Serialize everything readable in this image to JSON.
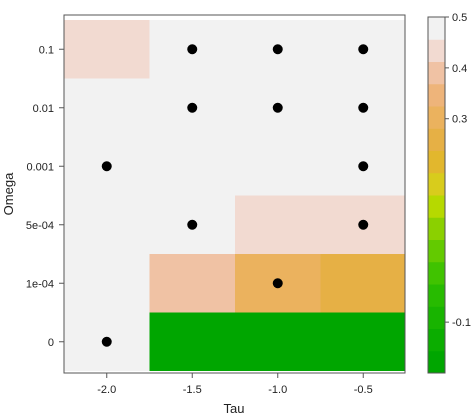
{
  "chart_data": {
    "type": "heatmap",
    "title": "",
    "xlabel": "Tau",
    "ylabel": "Omega",
    "x_categories": [
      "-2.0",
      "-1.5",
      "-1.0",
      "-0.5"
    ],
    "y_categories": [
      "0",
      "1e-04",
      "5e-04",
      "0.001",
      "0.01",
      "0.1"
    ],
    "cells": [
      {
        "tau": "-2.0",
        "omega": "0.1",
        "value": 0.42
      },
      {
        "tau": "-1.5",
        "omega": "0.1",
        "value": 0.46
      },
      {
        "tau": "-1.0",
        "omega": "0.1",
        "value": 0.46
      },
      {
        "tau": "-0.5",
        "omega": "0.1",
        "value": 0.46
      },
      {
        "tau": "-2.0",
        "omega": "0.01",
        "value": 0.46
      },
      {
        "tau": "-1.5",
        "omega": "0.01",
        "value": 0.46
      },
      {
        "tau": "-1.0",
        "omega": "0.01",
        "value": 0.46
      },
      {
        "tau": "-0.5",
        "omega": "0.01",
        "value": 0.5
      },
      {
        "tau": "-2.0",
        "omega": "0.001",
        "value": 0.46
      },
      {
        "tau": "-1.5",
        "omega": "0.001",
        "value": 0.46
      },
      {
        "tau": "-1.0",
        "omega": "0.001",
        "value": 0.46
      },
      {
        "tau": "-0.5",
        "omega": "0.001",
        "value": 0.46
      },
      {
        "tau": "-2.0",
        "omega": "5e-04",
        "value": 0.46
      },
      {
        "tau": "-1.5",
        "omega": "5e-04",
        "value": 0.46
      },
      {
        "tau": "-1.0",
        "omega": "5e-04",
        "value": 0.42
      },
      {
        "tau": "-0.5",
        "omega": "5e-04",
        "value": 0.42
      },
      {
        "tau": "-2.0",
        "omega": "1e-04",
        "value": 0.46
      },
      {
        "tau": "-1.5",
        "omega": "1e-04",
        "value": 0.38
      },
      {
        "tau": "-1.0",
        "omega": "1e-04",
        "value": 0.32
      },
      {
        "tau": "-0.5",
        "omega": "1e-04",
        "value": 0.28
      },
      {
        "tau": "-2.0",
        "omega": "0",
        "value": 0.5
      },
      {
        "tau": "-1.5",
        "omega": "0",
        "value": -0.18
      },
      {
        "tau": "-1.0",
        "omega": "0",
        "value": -0.18
      },
      {
        "tau": "-0.5",
        "omega": "0",
        "value": -0.18
      }
    ],
    "points": [
      {
        "tau": "-1.5",
        "omega": "0.1"
      },
      {
        "tau": "-1.0",
        "omega": "0.1"
      },
      {
        "tau": "-0.5",
        "omega": "0.1"
      },
      {
        "tau": "-1.5",
        "omega": "0.01"
      },
      {
        "tau": "-1.0",
        "omega": "0.01"
      },
      {
        "tau": "-0.5",
        "omega": "0.01"
      },
      {
        "tau": "-2.0",
        "omega": "0.001"
      },
      {
        "tau": "-0.5",
        "omega": "0.001"
      },
      {
        "tau": "-1.5",
        "omega": "5e-04"
      },
      {
        "tau": "-0.5",
        "omega": "5e-04"
      },
      {
        "tau": "-1.0",
        "omega": "1e-04"
      },
      {
        "tau": "-2.0",
        "omega": "0"
      }
    ],
    "colorbar": {
      "range": [
        -0.2,
        0.5
      ],
      "tick_values": [
        -0.1,
        0.3,
        0.4,
        0.5
      ],
      "tick_labels": [
        "-0.1",
        "0.3",
        "0.4",
        "0.5"
      ],
      "band_colors": [
        "#00a600",
        "#0bad00",
        "#18b400",
        "#27bb00",
        "#40c300",
        "#63ca00",
        "#8bd000",
        "#b6d900",
        "#d8cc1c",
        "#e2b72d",
        "#e6b045",
        "#ebb25e",
        "#eeb47a",
        "#f0c2a4",
        "#f2dad1",
        "#f2f2f2"
      ]
    }
  }
}
